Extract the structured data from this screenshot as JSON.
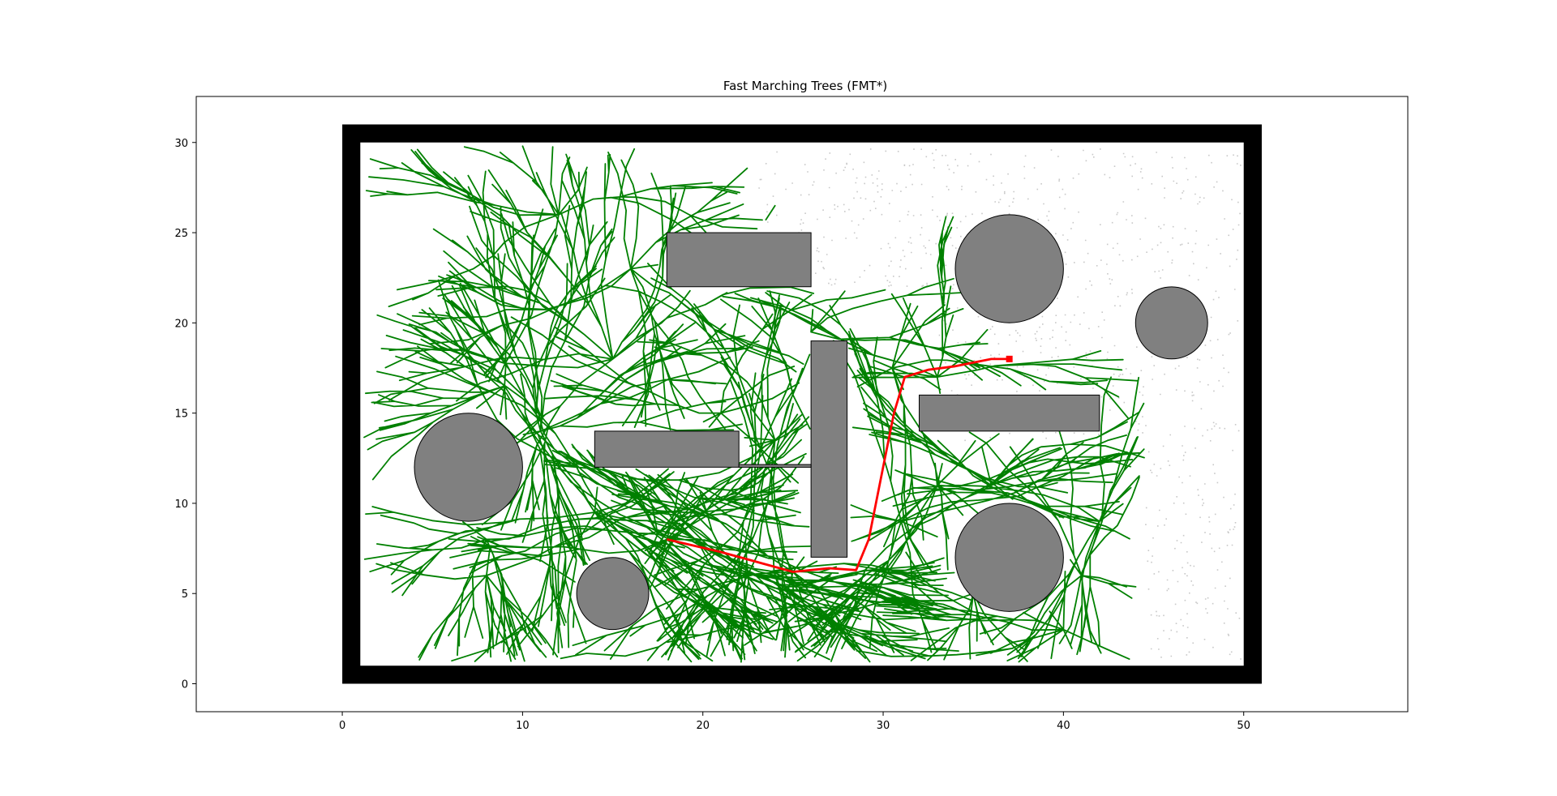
{
  "chart_data": {
    "type": "scatter",
    "title": "Fast Marching Trees (FMT*)",
    "xlabel": "",
    "ylabel": "",
    "xlim": [
      -8.1,
      59.1
    ],
    "ylim": [
      -1.55,
      32.55
    ],
    "x_ticks": [
      0,
      10,
      20,
      30,
      40,
      50
    ],
    "y_ticks": [
      0,
      5,
      10,
      15,
      20,
      25,
      30
    ],
    "grid": false,
    "legend": "none",
    "colors": {
      "boundary": "#000000",
      "obstacle": "#808080",
      "tree": "#008000",
      "path": "#ff0000",
      "sample": "#c8c8c8"
    },
    "environment": {
      "boundary_outer": [
        0,
        0,
        51,
        31
      ],
      "boundary_inner": [
        1,
        1,
        50,
        30
      ]
    },
    "rectangles": [
      {
        "x": 18,
        "y": 22,
        "w": 8,
        "h": 3
      },
      {
        "x": 26,
        "y": 7,
        "w": 2,
        "h": 12
      },
      {
        "x": 32,
        "y": 14,
        "w": 10,
        "h": 2
      },
      {
        "x": 14,
        "y": 12,
        "w": 8,
        "h": 2
      },
      {
        "x": 22,
        "y": 12,
        "w": 4,
        "h": 0.15
      }
    ],
    "circles": [
      {
        "x": 7,
        "y": 12,
        "r": 3
      },
      {
        "x": 15,
        "y": 5,
        "r": 2
      },
      {
        "x": 37,
        "y": 7,
        "r": 3
      },
      {
        "x": 37,
        "y": 23,
        "r": 3
      },
      {
        "x": 46,
        "y": 20,
        "r": 2
      }
    ],
    "start": [
      18,
      8
    ],
    "goal": [
      37,
      18
    ],
    "path": [
      [
        18,
        8
      ],
      [
        21,
        7.3
      ],
      [
        25,
        6.2
      ],
      [
        27,
        6.4
      ],
      [
        28.5,
        6.3
      ],
      [
        29.2,
        8
      ],
      [
        30,
        12
      ],
      [
        30.6,
        15
      ],
      [
        31.2,
        17
      ],
      [
        32.5,
        17.4
      ],
      [
        34,
        17.6
      ],
      [
        36,
        18
      ],
      [
        37,
        18
      ]
    ],
    "tree_roots": [
      [
        18,
        8
      ],
      [
        17.5,
        8.3
      ],
      [
        14,
        9.5
      ],
      [
        13,
        12
      ],
      [
        11,
        14
      ],
      [
        9,
        16.5
      ],
      [
        8,
        8
      ],
      [
        8,
        6
      ],
      [
        22,
        6.5
      ],
      [
        25,
        6.2
      ],
      [
        29,
        6.3
      ],
      [
        31,
        9
      ],
      [
        33,
        11
      ],
      [
        35,
        5
      ],
      [
        40,
        3
      ],
      [
        41,
        6
      ],
      [
        33,
        17
      ],
      [
        30.5,
        17.5
      ],
      [
        24,
        13.5
      ],
      [
        25,
        16
      ],
      [
        26,
        19.5
      ],
      [
        15,
        18
      ],
      [
        16,
        23
      ],
      [
        12,
        26
      ],
      [
        21,
        15
      ],
      [
        24,
        26.5
      ],
      [
        36,
        11
      ],
      [
        42,
        9
      ]
    ]
  }
}
